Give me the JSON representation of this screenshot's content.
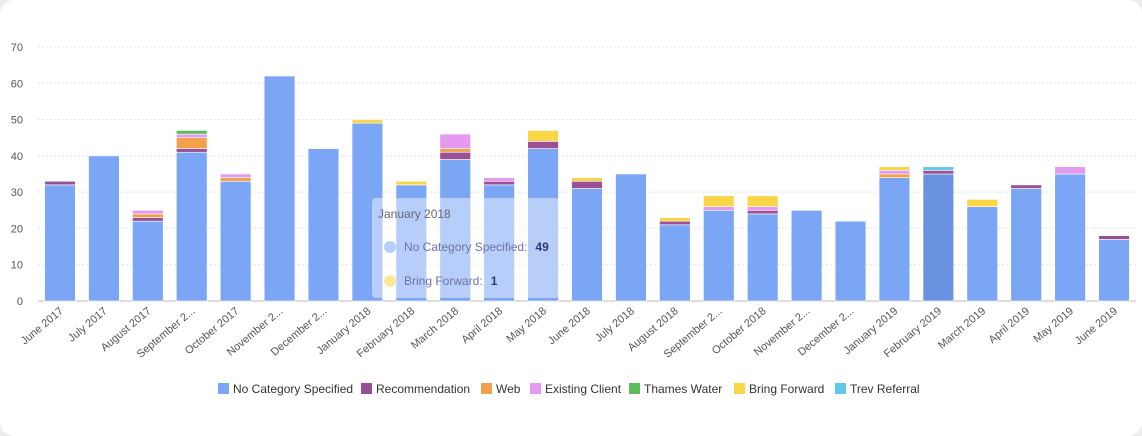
{
  "chart_data": {
    "type": "bar",
    "stacked": true,
    "ylim": [
      0,
      70
    ],
    "yticks": [
      0,
      10,
      20,
      30,
      40,
      50,
      60,
      70
    ],
    "grid": true,
    "legend_position": "bottom",
    "categories": [
      "June 2017",
      "July 2017",
      "August 2017",
      "September 2...",
      "October 2017",
      "November 2...",
      "December 2...",
      "January 2018",
      "February 2018",
      "March 2018",
      "April 2018",
      "May 2018",
      "June 2018",
      "July 2018",
      "August 2018",
      "September 2...",
      "October 2018",
      "November 2...",
      "December 2...",
      "January 2019",
      "February 2019",
      "March 2019",
      "April 2019",
      "May 2019",
      "June 2019"
    ],
    "series": [
      {
        "name": "No Category Specified",
        "color": "#7aa6f5",
        "values": [
          32,
          40,
          22,
          41,
          33,
          62,
          42,
          49,
          32,
          39,
          32,
          42,
          31,
          35,
          21,
          25,
          24,
          25,
          22,
          34,
          35,
          26,
          31,
          35,
          17
        ]
      },
      {
        "name": "Recommendation",
        "color": "#9b4f96",
        "values": [
          1,
          0,
          1,
          1,
          0,
          0,
          0,
          0,
          0,
          2,
          1,
          2,
          2,
          0,
          1,
          0,
          1,
          0,
          0,
          0,
          1,
          0,
          1,
          0,
          1
        ]
      },
      {
        "name": "Web",
        "color": "#f0a14a",
        "values": [
          0,
          0,
          1,
          3,
          1,
          0,
          0,
          0,
          0,
          1,
          0,
          0,
          0,
          0,
          0,
          0,
          0,
          0,
          0,
          1,
          0,
          0,
          0,
          0,
          0
        ]
      },
      {
        "name": "Existing Client",
        "color": "#e49af0",
        "values": [
          0,
          0,
          1,
          1,
          1,
          0,
          0,
          0,
          0,
          4,
          1,
          0,
          0,
          0,
          0,
          1,
          1,
          0,
          0,
          1,
          0,
          0,
          0,
          2,
          0
        ]
      },
      {
        "name": "Thames Water",
        "color": "#5cbd5a",
        "values": [
          0,
          0,
          0,
          1,
          0,
          0,
          0,
          0,
          0,
          0,
          0,
          0,
          0,
          0,
          0,
          0,
          0,
          0,
          0,
          0,
          0,
          0,
          0,
          0,
          0
        ]
      },
      {
        "name": "Bring Forward",
        "color": "#fad546",
        "values": [
          0,
          0,
          0,
          0,
          0,
          0,
          0,
          1,
          1,
          0,
          0,
          3,
          1,
          0,
          1,
          3,
          3,
          0,
          0,
          1,
          0,
          2,
          0,
          0,
          0
        ]
      },
      {
        "name": "Trev Referral",
        "color": "#62c8e8",
        "values": [
          0,
          0,
          0,
          0,
          0,
          0,
          0,
          0,
          0,
          0,
          0,
          0,
          0,
          0,
          0,
          0,
          0,
          0,
          0,
          0,
          1,
          0,
          0,
          0,
          0
        ]
      }
    ],
    "highlight_index": 20
  },
  "tooltip": {
    "title": "January 2018",
    "rows": [
      {
        "name": "No Category Specified:",
        "value": "49",
        "color": "#7aa6f5"
      },
      {
        "name": "Bring Forward:",
        "value": "1",
        "color": "#fad546"
      }
    ]
  }
}
